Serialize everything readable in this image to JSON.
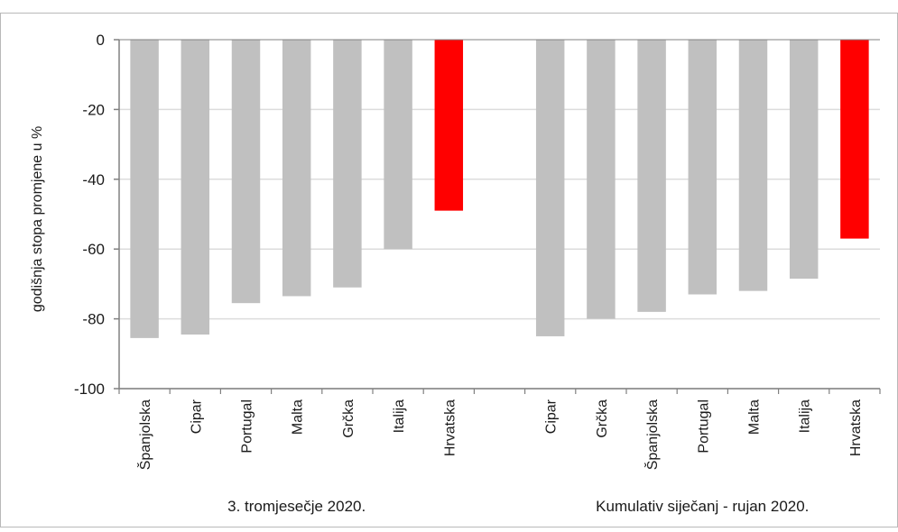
{
  "chart_data": {
    "type": "bar",
    "ylabel": "godišnja stopa promjene u %",
    "ylim": [
      -100,
      0
    ],
    "yticks": [
      0,
      -20,
      -40,
      -60,
      -80,
      -100
    ],
    "ytick_labels": [
      "0",
      "-20",
      "-40",
      "-60",
      "-80",
      "-100"
    ],
    "grid": true,
    "colors": {
      "default": "#c0c0c0",
      "highlight": "#ff0000",
      "grid": "#dcdcdc",
      "axis": "#808080"
    },
    "groups": [
      {
        "label": "3. tromjesečje 2020.",
        "categories": [
          "Španjolska",
          "Cipar",
          "Portugal",
          "Malta",
          "Grčka",
          "Italija",
          "Hrvatska"
        ],
        "values": [
          -85.5,
          -84.5,
          -75.5,
          -73.5,
          -71,
          -60,
          -49
        ],
        "highlight": [
          "Hrvatska"
        ]
      },
      {
        "label": "Kumulativ  siječanj - rujan 2020.",
        "categories": [
          "Cipar",
          "Grčka",
          "Španjolska",
          "Portugal",
          "Malta",
          "Italija",
          "Hrvatska"
        ],
        "values": [
          -85,
          -80,
          -78,
          -73,
          -72,
          -68.5,
          -57
        ],
        "highlight": [
          "Hrvatska"
        ]
      }
    ]
  }
}
